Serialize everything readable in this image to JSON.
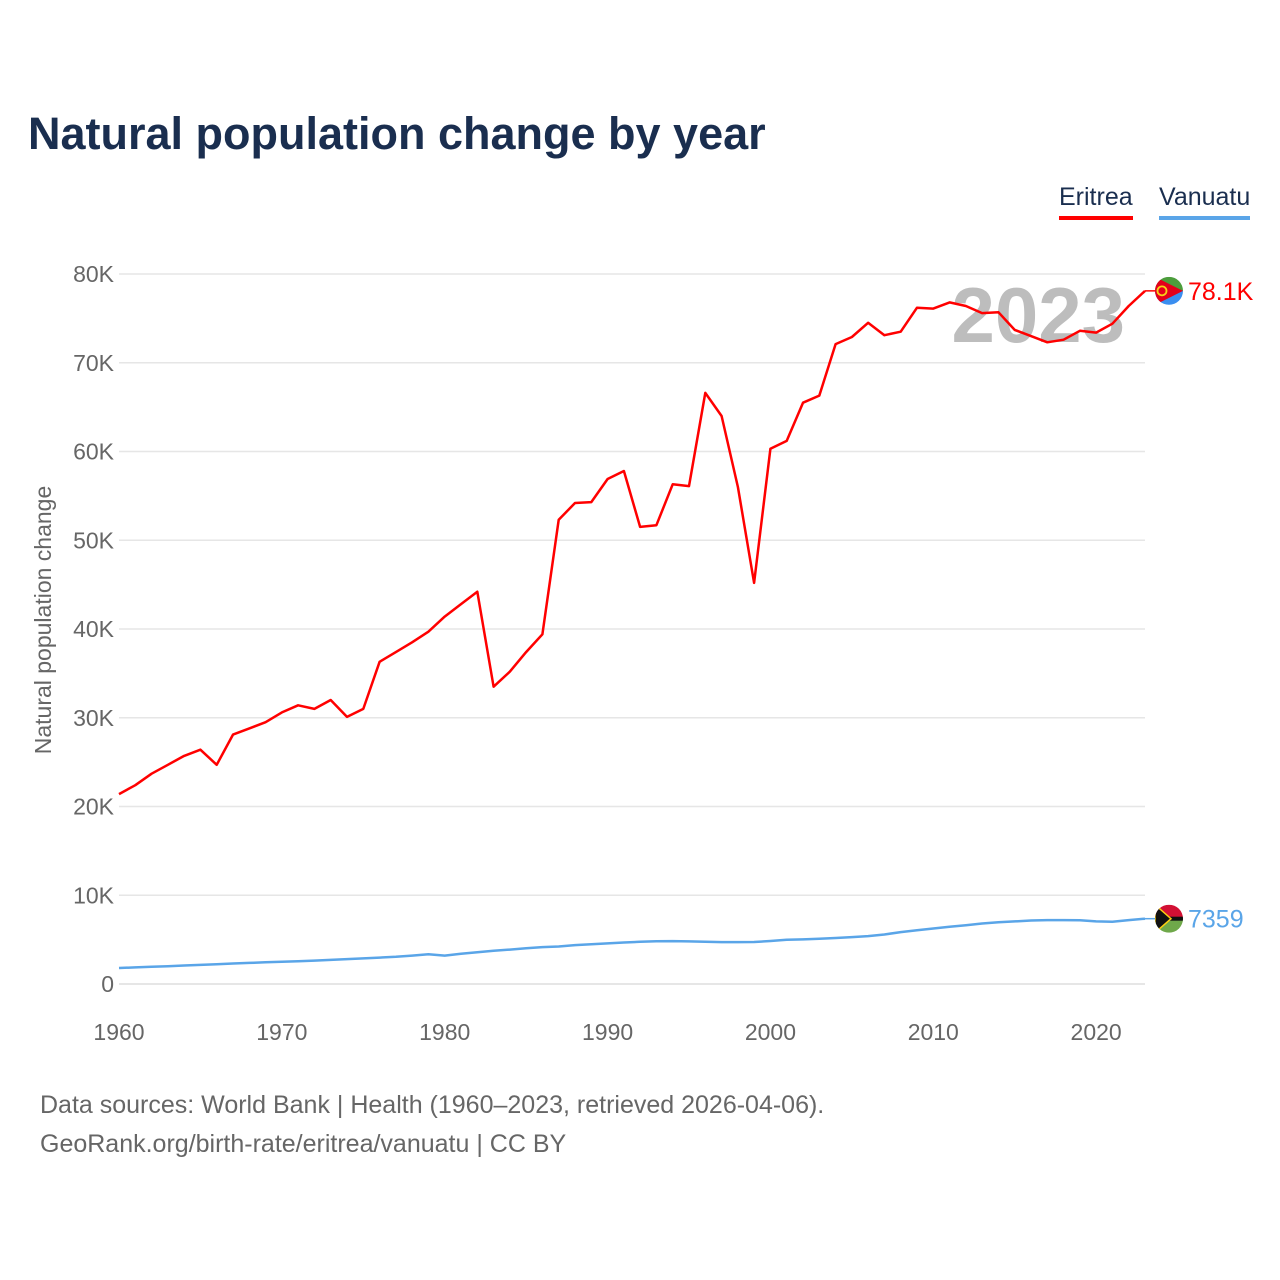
{
  "title": "Natural population change by year",
  "source_line1": "Data sources: World Bank | Health (1960–2023, retrieved 2026-04-06).",
  "source_line2": "GeoRank.org/birth-rate/eritrea/vanuatu | CC BY",
  "chart_data": {
    "type": "line",
    "title": "Natural population change by year",
    "ylabel": "Natural population change",
    "xlabel": "",
    "ylim": [
      0,
      80000
    ],
    "xlim": [
      1960,
      2023
    ],
    "yticks": [
      {
        "v": 0,
        "label": "0"
      },
      {
        "v": 10000,
        "label": "10K"
      },
      {
        "v": 20000,
        "label": "20K"
      },
      {
        "v": 30000,
        "label": "30K"
      },
      {
        "v": 40000,
        "label": "40K"
      },
      {
        "v": 50000,
        "label": "50K"
      },
      {
        "v": 60000,
        "label": "60K"
      },
      {
        "v": 70000,
        "label": "70K"
      },
      {
        "v": 80000,
        "label": "80K"
      }
    ],
    "xticks": [
      {
        "v": 1960,
        "label": "1960"
      },
      {
        "v": 1970,
        "label": "1970"
      },
      {
        "v": 1980,
        "label": "1980"
      },
      {
        "v": 1990,
        "label": "1990"
      },
      {
        "v": 2000,
        "label": "2000"
      },
      {
        "v": 2010,
        "label": "2010"
      },
      {
        "v": 2020,
        "label": "2020"
      }
    ],
    "year_watermark": "2023",
    "grid": true,
    "legend_position": "top-right",
    "x_start": 1960,
    "series": [
      {
        "name": "Eritrea",
        "color": "#ff0000",
        "end_label": "78.1K",
        "flag": "eritrea-flag",
        "values": [
          21400,
          22400,
          23700,
          24700,
          25700,
          26400,
          24700,
          28100,
          28800,
          29500,
          30600,
          31400,
          31000,
          32000,
          30100,
          31000,
          36300,
          37400,
          38500,
          39700,
          41400,
          42800,
          44200,
          33500,
          35200,
          37400,
          39400,
          52300,
          54200,
          54300,
          56900,
          57800,
          51500,
          51700,
          56300,
          56100,
          66600,
          64000,
          56000,
          45200,
          60300,
          61200,
          65500,
          66300,
          72100,
          72900,
          74500,
          73100,
          73500,
          76200,
          76100,
          76800,
          76400,
          75600,
          75700,
          73700,
          73000,
          72300,
          72600,
          73600,
          73400,
          74400,
          76400,
          78100
        ]
      },
      {
        "name": "Vanuatu",
        "color": "#5aa5e8",
        "end_label": "7359",
        "flag": "vanuatu-flag",
        "values": [
          1800,
          1870,
          1940,
          2010,
          2080,
          2150,
          2230,
          2310,
          2380,
          2440,
          2500,
          2570,
          2640,
          2720,
          2800,
          2880,
          2970,
          3070,
          3200,
          3360,
          3200,
          3400,
          3580,
          3740,
          3880,
          4020,
          4160,
          4230,
          4380,
          4480,
          4580,
          4680,
          4760,
          4820,
          4830,
          4800,
          4760,
          4720,
          4720,
          4730,
          4850,
          4980,
          5020,
          5090,
          5180,
          5280,
          5400,
          5580,
          5850,
          6050,
          6250,
          6450,
          6620,
          6820,
          6950,
          7050,
          7150,
          7200,
          7200,
          7180,
          7050,
          7020,
          7200,
          7359
        ]
      }
    ]
  }
}
